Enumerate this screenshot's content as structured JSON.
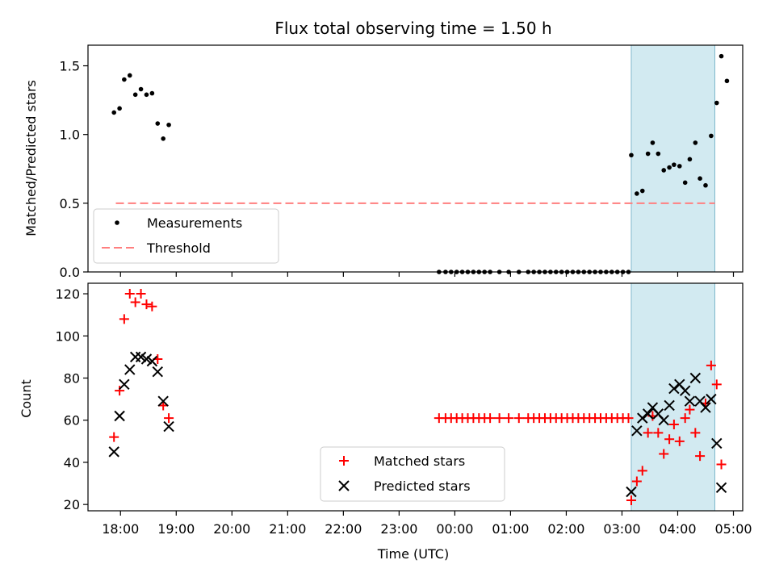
{
  "chart_data": [
    {
      "type": "scatter",
      "title": "Flux total observing time = 1.50 h",
      "xlabel": "",
      "ylabel": "Matched/Predicted stars",
      "ylim": [
        0,
        1.65
      ],
      "yticks": [
        0.0,
        0.5,
        1.0,
        1.5
      ],
      "xlim": [
        "17:25",
        "05:10"
      ],
      "shaded_interval": [
        "03:10",
        "04:40"
      ],
      "shade_color": "#add8e6",
      "threshold": {
        "label": "Threshold",
        "value": 0.5,
        "x_range": [
          "17:55",
          "04:40"
        ],
        "color": "#ff7f7f"
      },
      "legend_placement": "lower-left",
      "series": [
        {
          "name": "Measurements",
          "marker": "point",
          "color": "#000000",
          "points": [
            [
              "17:53",
              1.16
            ],
            [
              "17:59",
              1.19
            ],
            [
              "18:04",
              1.4
            ],
            [
              "18:10",
              1.43
            ],
            [
              "18:16",
              1.29
            ],
            [
              "18:22",
              1.33
            ],
            [
              "18:28",
              1.29
            ],
            [
              "18:34",
              1.3
            ],
            [
              "18:40",
              1.08
            ],
            [
              "18:46",
              0.97
            ],
            [
              "18:52",
              1.07
            ],
            [
              "23:43",
              0.0
            ],
            [
              "23:50",
              0.0
            ],
            [
              "23:56",
              0.0
            ],
            [
              "00:02",
              0.0
            ],
            [
              "00:08",
              0.0
            ],
            [
              "00:14",
              0.0
            ],
            [
              "00:20",
              0.0
            ],
            [
              "00:26",
              0.0
            ],
            [
              "00:32",
              0.0
            ],
            [
              "00:38",
              0.0
            ],
            [
              "00:48",
              0.0
            ],
            [
              "00:58",
              0.0
            ],
            [
              "01:09",
              0.0
            ],
            [
              "01:19",
              0.0
            ],
            [
              "01:25",
              0.0
            ],
            [
              "01:31",
              0.0
            ],
            [
              "01:37",
              0.0
            ],
            [
              "01:43",
              0.0
            ],
            [
              "01:49",
              0.0
            ],
            [
              "01:55",
              0.0
            ],
            [
              "02:01",
              0.0
            ],
            [
              "02:07",
              0.0
            ],
            [
              "02:13",
              0.0
            ],
            [
              "02:19",
              0.0
            ],
            [
              "02:25",
              0.0
            ],
            [
              "02:31",
              0.0
            ],
            [
              "02:37",
              0.0
            ],
            [
              "02:43",
              0.0
            ],
            [
              "02:49",
              0.0
            ],
            [
              "02:55",
              0.0
            ],
            [
              "03:01",
              0.0
            ],
            [
              "03:07",
              0.0
            ],
            [
              "03:10",
              0.85
            ],
            [
              "03:16",
              0.57
            ],
            [
              "03:22",
              0.59
            ],
            [
              "03:28",
              0.86
            ],
            [
              "03:33",
              0.94
            ],
            [
              "03:39",
              0.86
            ],
            [
              "03:45",
              0.74
            ],
            [
              "03:51",
              0.76
            ],
            [
              "03:56",
              0.78
            ],
            [
              "04:02",
              0.77
            ],
            [
              "04:08",
              0.65
            ],
            [
              "04:13",
              0.82
            ],
            [
              "04:19",
              0.94
            ],
            [
              "04:24",
              0.68
            ],
            [
              "04:30",
              0.63
            ],
            [
              "04:36",
              0.99
            ],
            [
              "04:42",
              1.23
            ],
            [
              "04:47",
              1.57
            ],
            [
              "04:53",
              1.39
            ]
          ]
        }
      ]
    },
    {
      "type": "scatter",
      "xlabel": "Time (UTC)",
      "ylabel": "Count",
      "ylim": [
        17,
        125
      ],
      "yticks": [
        20,
        40,
        60,
        80,
        100,
        120
      ],
      "xlim": [
        "17:25",
        "05:10"
      ],
      "xticks": [
        "18:00",
        "19:00",
        "20:00",
        "21:00",
        "22:00",
        "23:00",
        "00:00",
        "01:00",
        "02:00",
        "03:00",
        "04:00",
        "05:00"
      ],
      "shaded_interval": [
        "03:10",
        "04:40"
      ],
      "shade_color": "#add8e6",
      "legend_placement": "lower-center",
      "series": [
        {
          "name": "Matched stars",
          "marker": "plus",
          "color": "#ff0000",
          "points": [
            [
              "17:53",
              52
            ],
            [
              "17:59",
              74
            ],
            [
              "18:04",
              108
            ],
            [
              "18:10",
              120
            ],
            [
              "18:16",
              116
            ],
            [
              "18:22",
              120
            ],
            [
              "18:28",
              115
            ],
            [
              "18:34",
              114
            ],
            [
              "18:40",
              89
            ],
            [
              "18:46",
              67
            ],
            [
              "18:52",
              61
            ],
            [
              "23:43",
              61
            ],
            [
              "23:50",
              61
            ],
            [
              "23:56",
              61
            ],
            [
              "00:02",
              61
            ],
            [
              "00:08",
              61
            ],
            [
              "00:14",
              61
            ],
            [
              "00:20",
              61
            ],
            [
              "00:26",
              61
            ],
            [
              "00:32",
              61
            ],
            [
              "00:38",
              61
            ],
            [
              "00:48",
              61
            ],
            [
              "00:58",
              61
            ],
            [
              "01:09",
              61
            ],
            [
              "01:19",
              61
            ],
            [
              "01:25",
              61
            ],
            [
              "01:31",
              61
            ],
            [
              "01:37",
              61
            ],
            [
              "01:43",
              61
            ],
            [
              "01:49",
              61
            ],
            [
              "01:55",
              61
            ],
            [
              "02:01",
              61
            ],
            [
              "02:07",
              61
            ],
            [
              "02:13",
              61
            ],
            [
              "02:19",
              61
            ],
            [
              "02:25",
              61
            ],
            [
              "02:31",
              61
            ],
            [
              "02:37",
              61
            ],
            [
              "02:43",
              61
            ],
            [
              "02:49",
              61
            ],
            [
              "02:55",
              61
            ],
            [
              "03:01",
              61
            ],
            [
              "03:07",
              61
            ],
            [
              "03:10",
              22
            ],
            [
              "03:16",
              31
            ],
            [
              "03:22",
              36
            ],
            [
              "03:28",
              54
            ],
            [
              "03:33",
              62
            ],
            [
              "03:39",
              54
            ],
            [
              "03:45",
              44
            ],
            [
              "03:51",
              51
            ],
            [
              "03:56",
              58
            ],
            [
              "04:02",
              50
            ],
            [
              "04:08",
              61
            ],
            [
              "04:13",
              65
            ],
            [
              "04:19",
              54
            ],
            [
              "04:24",
              43
            ],
            [
              "04:30",
              68
            ],
            [
              "04:36",
              86
            ],
            [
              "04:42",
              77
            ],
            [
              "04:47",
              39
            ]
          ]
        },
        {
          "name": "Predicted stars",
          "marker": "x",
          "color": "#000000",
          "points": [
            [
              "17:53",
              45
            ],
            [
              "17:59",
              62
            ],
            [
              "18:04",
              77
            ],
            [
              "18:10",
              84
            ],
            [
              "18:16",
              90
            ],
            [
              "18:22",
              90
            ],
            [
              "18:28",
              89
            ],
            [
              "18:34",
              88
            ],
            [
              "18:40",
              83
            ],
            [
              "18:46",
              69
            ],
            [
              "18:52",
              57
            ],
            [
              "03:10",
              26
            ],
            [
              "03:16",
              55
            ],
            [
              "03:22",
              61
            ],
            [
              "03:28",
              63
            ],
            [
              "03:33",
              66
            ],
            [
              "03:39",
              63
            ],
            [
              "03:45",
              60
            ],
            [
              "03:51",
              67
            ],
            [
              "03:56",
              75
            ],
            [
              "04:02",
              77
            ],
            [
              "04:08",
              74
            ],
            [
              "04:13",
              69
            ],
            [
              "04:19",
              80
            ],
            [
              "04:24",
              69
            ],
            [
              "04:30",
              66
            ],
            [
              "04:36",
              70
            ],
            [
              "04:42",
              49
            ],
            [
              "04:47",
              28
            ]
          ]
        }
      ]
    }
  ]
}
